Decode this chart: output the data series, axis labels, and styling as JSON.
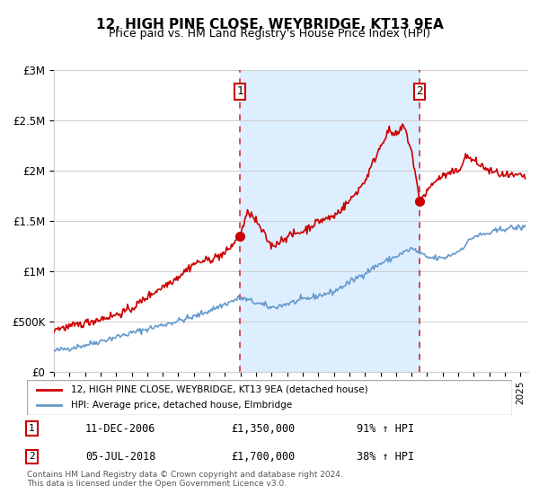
{
  "title": "12, HIGH PINE CLOSE, WEYBRIDGE, KT13 9EA",
  "subtitle": "Price paid vs. HM Land Registry's House Price Index (HPI)",
  "legend_line1": "12, HIGH PINE CLOSE, WEYBRIDGE, KT13 9EA (detached house)",
  "legend_line2": "HPI: Average price, detached house, Elmbridge",
  "sale1_label": "1",
  "sale1_date": "11-DEC-2006",
  "sale1_price": "£1,350,000",
  "sale1_hpi": "91% ↑ HPI",
  "sale1_year": 2006.95,
  "sale1_value": 1350000,
  "sale2_label": "2",
  "sale2_date": "05-JUL-2018",
  "sale2_price": "£1,700,000",
  "sale2_hpi": "38% ↑ HPI",
  "sale2_year": 2018.51,
  "sale2_value": 1700000,
  "shade_start": 2006.95,
  "shade_end": 2018.51,
  "xmin": 1995.0,
  "xmax": 2025.5,
  "ymin": 0,
  "ymax": 3000000,
  "red_color": "#cc0000",
  "blue_color": "#6699cc",
  "shade_color": "#ddeeff",
  "grid_color": "#cccccc",
  "footnote": "Contains HM Land Registry data © Crown copyright and database right 2024.\nThis data is licensed under the Open Government Licence v3.0."
}
